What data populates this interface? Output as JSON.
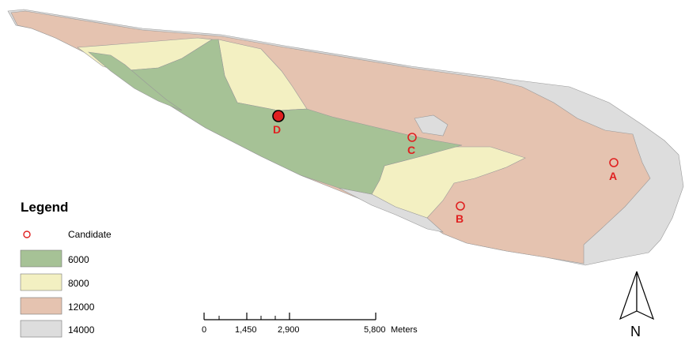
{
  "map": {
    "zone_colors": {
      "z6000": "#a6c296",
      "z8000": "#f3f0c2",
      "z12000": "#e5c3b0",
      "z14000": "#dddddd"
    },
    "candidate_color": "#e02020",
    "candidates": [
      {
        "id": "A",
        "label": "A"
      },
      {
        "id": "B",
        "label": "B"
      },
      {
        "id": "C",
        "label": "C"
      },
      {
        "id": "D",
        "label": "D"
      }
    ]
  },
  "legend": {
    "title": "Legend",
    "items": [
      {
        "label": "Candidate",
        "symbol": "circle-outline"
      },
      {
        "label": "6000",
        "color": "#a6c296"
      },
      {
        "label": "8000",
        "color": "#f3f0c2"
      },
      {
        "label": "12000",
        "color": "#e5c3b0"
      },
      {
        "label": "14000",
        "color": "#dddddd"
      }
    ]
  },
  "scale_bar": {
    "ticks": [
      "0",
      "1,450",
      "2,900",
      "5,800"
    ],
    "unit": "Meters"
  },
  "north_arrow": {
    "label": "N",
    "icon": "north-arrow-icon"
  }
}
